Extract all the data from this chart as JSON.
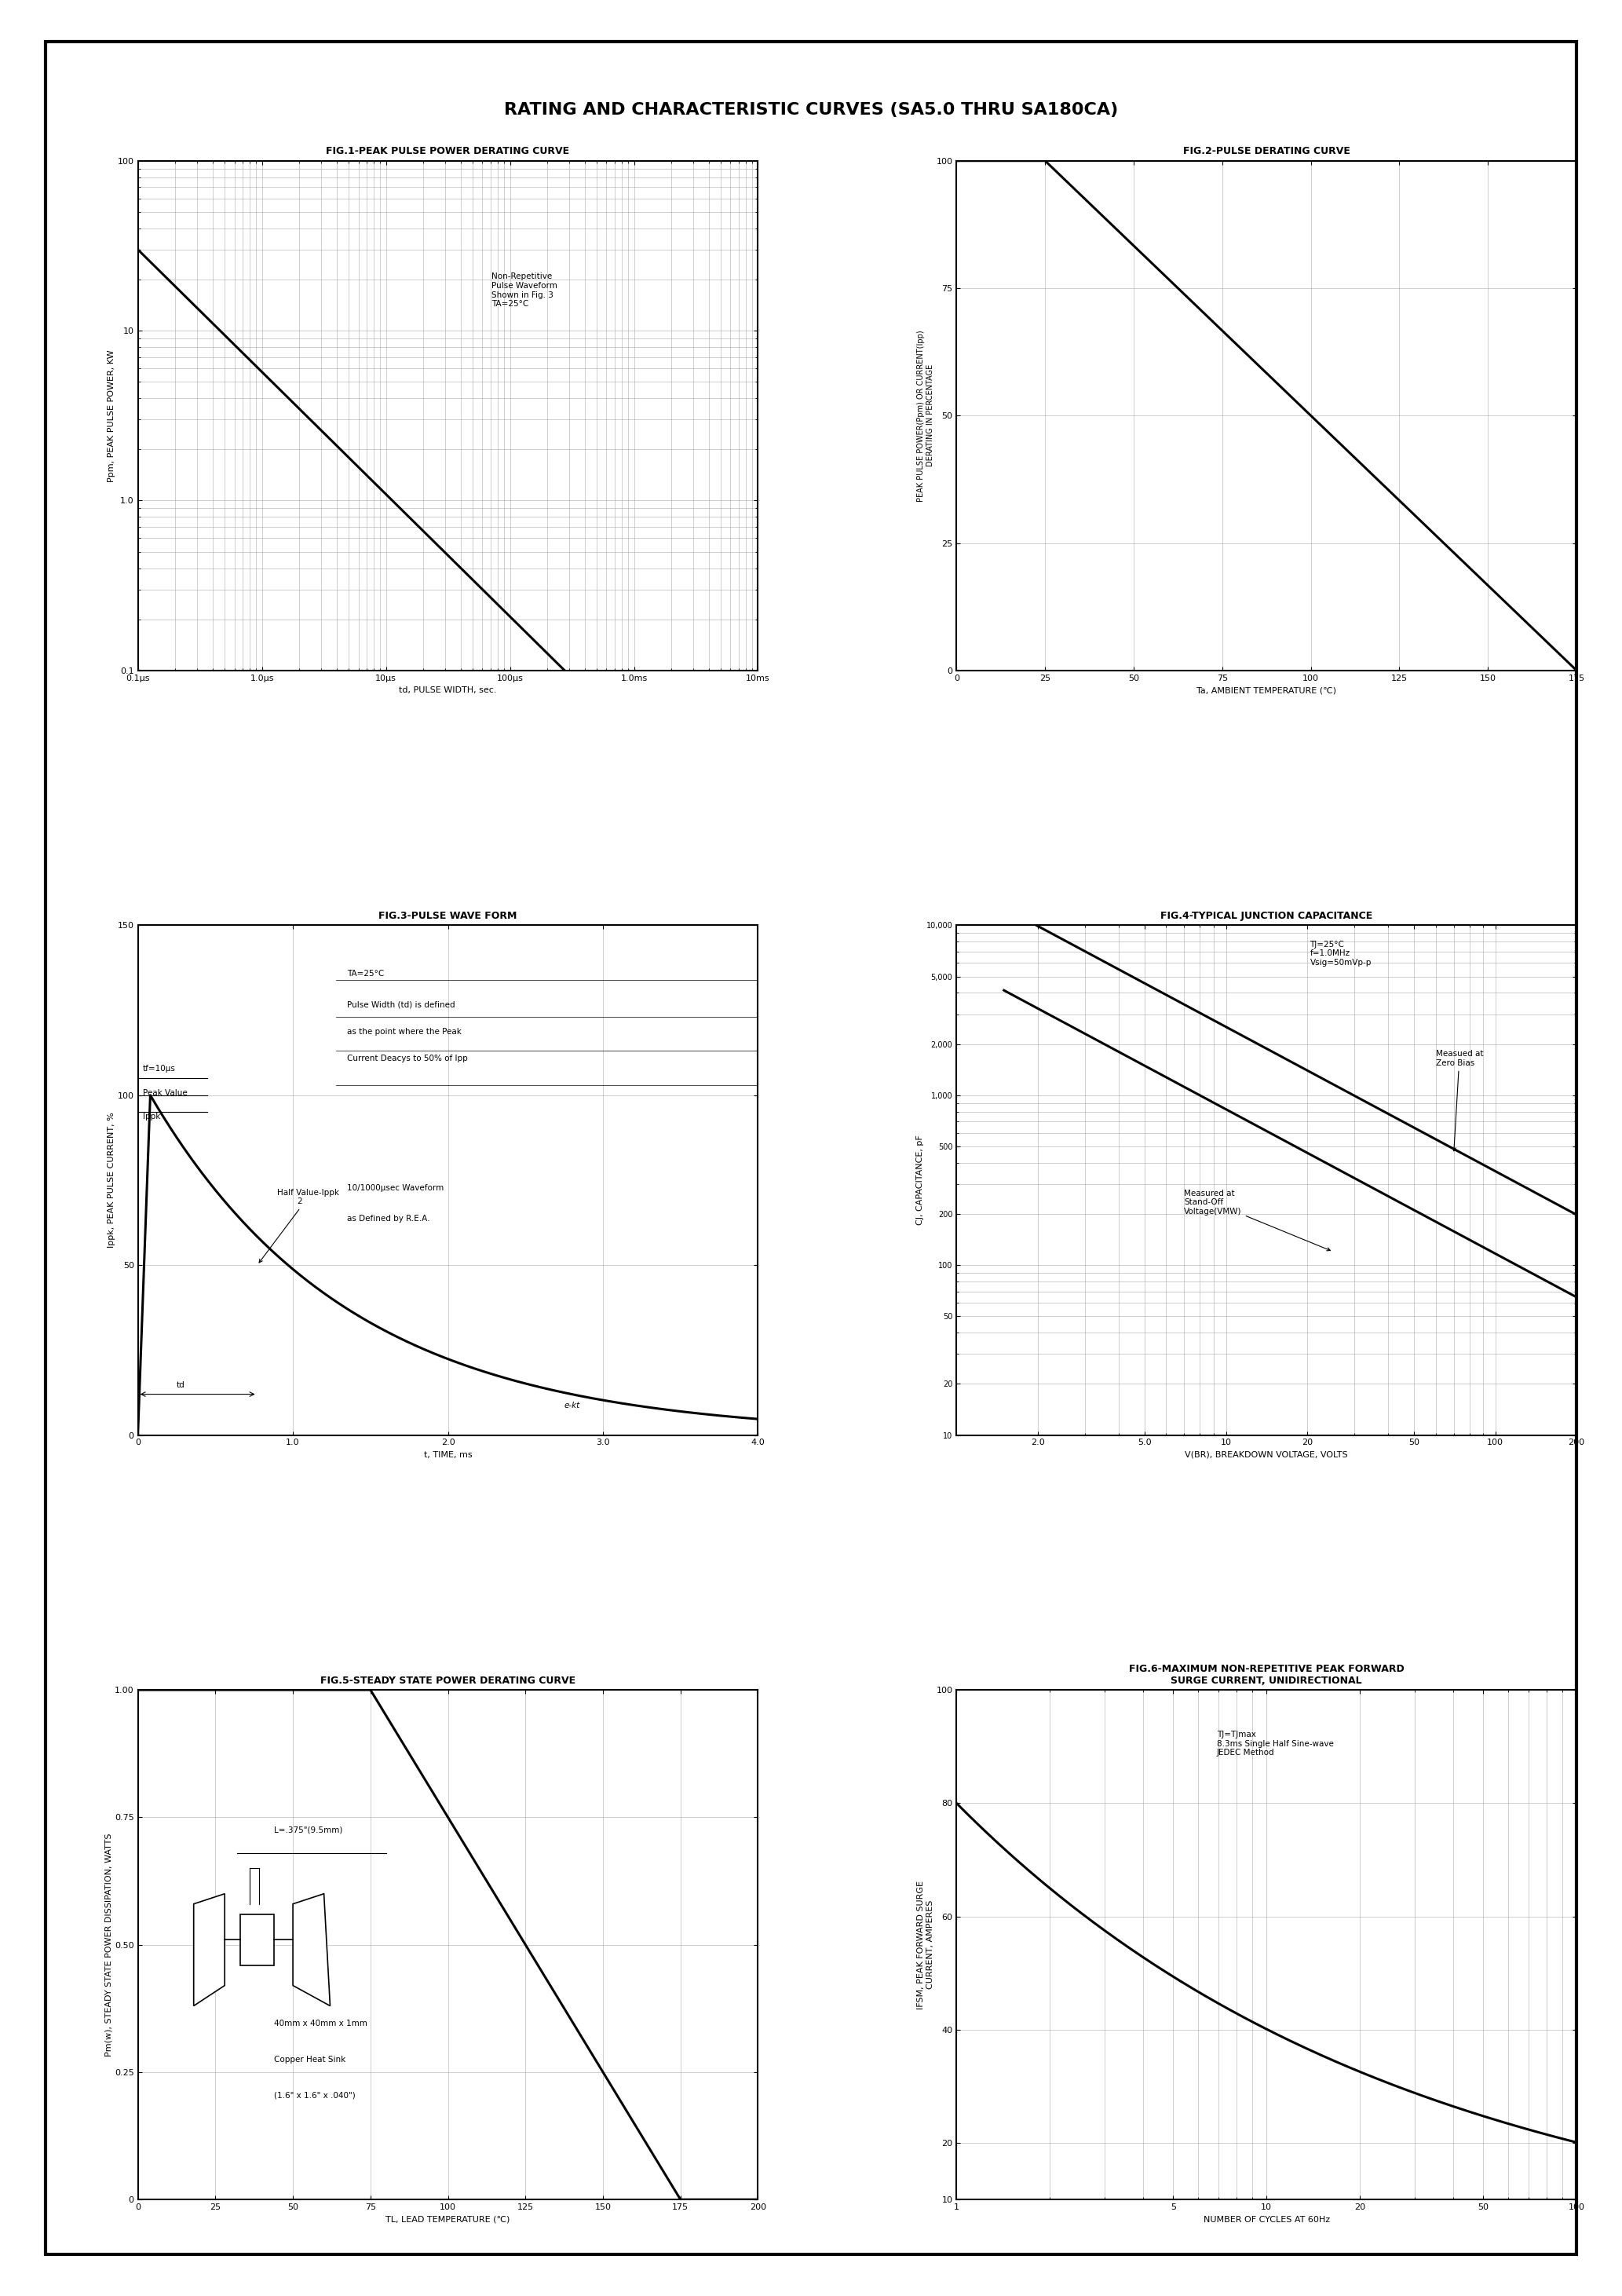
{
  "title": "RATING AND CHARACTERISTIC CURVES (SA5.0 THRU SA180CA)",
  "fig1_title": "FIG.1-PEAK PULSE POWER DERATING CURVE",
  "fig2_title": "FIG.2-PULSE DERATING CURVE",
  "fig3_title": "FIG.3-PULSE WAVE FORM",
  "fig4_title": "FIG.4-TYPICAL JUNCTION CAPACITANCE",
  "fig5_title": "FIG.5-STEADY STATE POWER DERATING CURVE",
  "fig6_title": "FIG.6-MAXIMUM NON-REPETITIVE PEAK FORWARD\nSURGE CURRENT, UNIDIRECTIONAL",
  "fig1_xlabel": "td, PULSE WIDTH, sec.",
  "fig1_ylabel": "Ppm, PEAK PULSE POWER, KW",
  "fig2_xlabel": "Ta, AMBIENT TEMPERATURE (℃)",
  "fig2_ylabel": "PEAK PULSE POWER(Ppm) OR CURRENT(Ipp)\nDERATING IN PERCENTAGE",
  "fig3_xlabel": "t, TIME, ms",
  "fig3_ylabel": "Ippk, PEAK PULSE CURRENT, %",
  "fig4_xlabel": "V(BR), BREAKDOWN VOLTAGE, VOLTS",
  "fig4_ylabel": "CJ, CAPACITANCE, pF",
  "fig5_xlabel": "TL, LEAD TEMPERATURE (℃)",
  "fig5_ylabel": "Pm(w), STEADY STATE POWER DISSIPATION, WATTS",
  "fig6_xlabel": "NUMBER OF CYCLES AT 60Hz",
  "fig6_ylabel": "IFSM, PEAK FORWARD SURGE\nCURRENT, AMPERES",
  "background_color": "#ffffff",
  "line_color": "#000000",
  "grid_color": "#aaaaaa",
  "title_fontsize": 16,
  "subtitle_fontsize": 9,
  "axis_label_fontsize": 8,
  "tick_fontsize": 8,
  "annot_fontsize": 7.5
}
